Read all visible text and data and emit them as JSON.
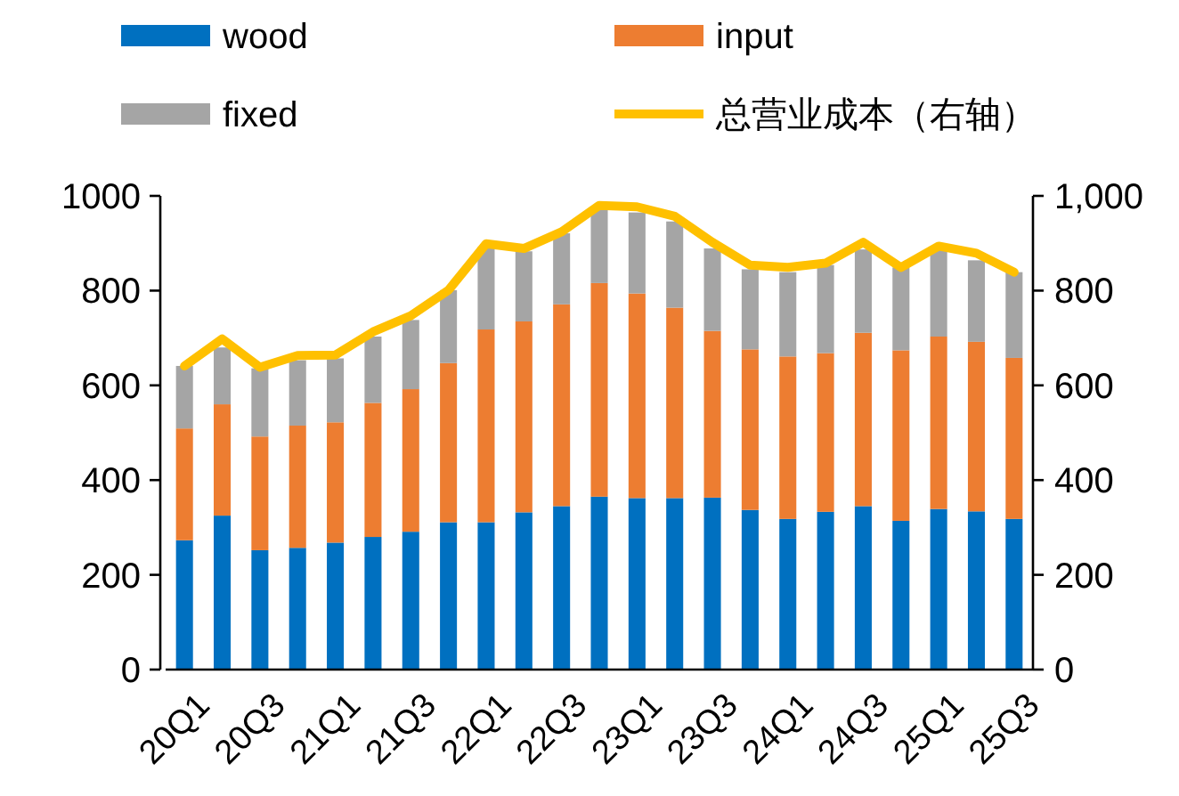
{
  "chart_data": {
    "type": "bar",
    "stacked": true,
    "legend": "top",
    "categories": [
      "20Q1",
      null,
      "20Q3",
      null,
      "21Q1",
      null,
      "21Q3",
      null,
      "22Q1",
      null,
      "22Q3",
      null,
      "23Q1",
      null,
      "23Q3",
      null,
      "24Q1",
      null,
      "24Q3",
      null,
      "25Q1",
      null,
      "25Q3"
    ],
    "ylim": [
      0,
      1000
    ],
    "yticks": [
      0,
      200,
      400,
      600,
      800,
      1000
    ],
    "y2lim": [
      0,
      1000
    ],
    "y2ticks": [
      0,
      200,
      400,
      600,
      800,
      {
        "value": 1000,
        "label": "1,000"
      }
    ],
    "series": [
      {
        "name": "wood",
        "color": "#0070c0",
        "values": [
          273,
          325,
          252,
          257,
          268,
          280,
          291,
          311,
          311,
          332,
          345,
          365,
          362,
          362,
          363,
          337,
          318,
          333,
          345,
          314,
          339,
          334,
          318
        ]
      },
      {
        "name": "input",
        "color": "#ed7d31",
        "values": [
          236,
          235,
          240,
          258,
          254,
          283,
          301,
          336,
          407,
          403,
          426,
          451,
          432,
          402,
          352,
          339,
          343,
          335,
          366,
          360,
          364,
          358,
          340
        ]
      },
      {
        "name": "fixed",
        "color": "#a5a5a5",
        "values": [
          132,
          120,
          144,
          138,
          135,
          140,
          146,
          154,
          174,
          148,
          150,
          155,
          171,
          182,
          174,
          169,
          178,
          186,
          176,
          175,
          184,
          172,
          181
        ]
      },
      {
        "name": "总营业成本（右轴）",
        "type": "line",
        "axis": "y2",
        "color": "#ffc000",
        "values": [
          641,
          698,
          638,
          663,
          664,
          713,
          747,
          801,
          899,
          889,
          924,
          980,
          977,
          957,
          902,
          854,
          849,
          858,
          902,
          849,
          894,
          879,
          839
        ]
      }
    ]
  }
}
